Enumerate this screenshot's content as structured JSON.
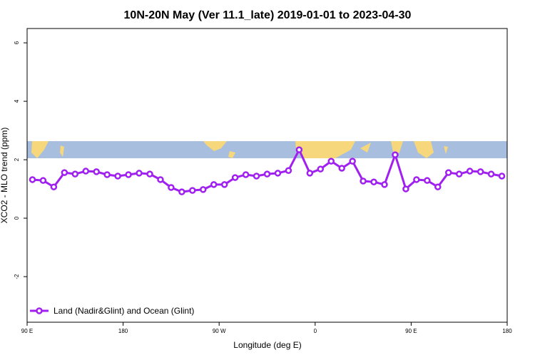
{
  "chart_data": {
    "type": "line",
    "title": "10N-20N May (Ver 11.1_late)   2019-01-01 to 2023-04-30",
    "x_label": "Longitude (deg E)",
    "y_label": "XCO2 - MLO trend (ppm)",
    "x": [
      95,
      105,
      115,
      125,
      135,
      145,
      155,
      165,
      175,
      185,
      195,
      205,
      215,
      225,
      235,
      245,
      255,
      265,
      275,
      285,
      295,
      305,
      315,
      325,
      335,
      345,
      355,
      365,
      375,
      385,
      395,
      405,
      415,
      425,
      435,
      445,
      455,
      465,
      475,
      485,
      495,
      505,
      515,
      525,
      535
    ],
    "series": [
      {
        "name": "Land (Nadir&Glint) and Ocean (Glint)",
        "color": "#a020f0",
        "values": [
          1.32,
          1.29,
          1.07,
          1.56,
          1.51,
          1.61,
          1.59,
          1.49,
          1.44,
          1.49,
          1.54,
          1.51,
          1.32,
          1.05,
          0.9,
          0.95,
          0.98,
          1.15,
          1.15,
          1.39,
          1.49,
          1.44,
          1.51,
          1.54,
          1.63,
          2.34,
          1.54,
          1.68,
          1.95,
          1.71,
          1.95,
          1.27,
          1.24,
          1.15,
          2.17,
          1.0,
          1.32,
          1.29,
          1.07,
          1.56,
          1.51,
          1.61,
          1.59,
          1.51,
          1.44
        ]
      }
    ],
    "xlim": [
      90,
      540
    ],
    "xticks": [
      {
        "value": 90,
        "label": "90 E"
      },
      180,
      {
        "value": 270,
        "label": "90 W"
      },
      {
        "value": 360,
        "label": "0"
      },
      {
        "value": 450,
        "label": "90 E"
      },
      {
        "value": 540,
        "label": "180"
      }
    ],
    "ylim": [
      -3.56,
      6.49
    ],
    "yticks": [
      -2,
      0,
      2,
      4,
      6
    ],
    "legend": "bottom-left"
  }
}
